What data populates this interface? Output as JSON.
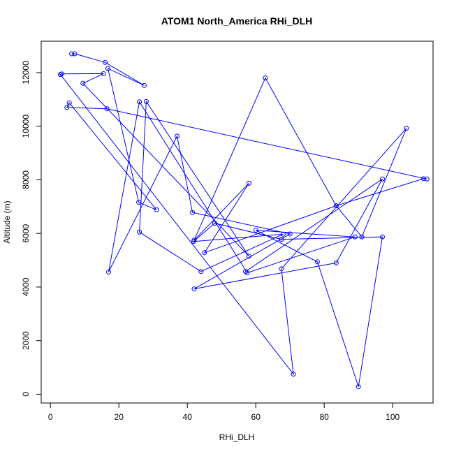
{
  "chart_data": {
    "type": "line",
    "title": "ATOM1 North_America RHi_DLH",
    "xlabel": "RHi_DLH",
    "ylabel": "Altitude (m)",
    "xlim": [
      0,
      110
    ],
    "ylim": [
      0,
      13000
    ],
    "xticks": [
      0,
      20,
      40,
      60,
      80,
      100
    ],
    "yticks": [
      0,
      2000,
      4000,
      6000,
      8000,
      10000,
      12000
    ],
    "grid": false,
    "legend": "none",
    "color": "#0000FF",
    "series": [
      {
        "x": [
          6.2,
          7.1,
          16.0,
          27.4,
          16.8,
          25.8,
          31.0,
          5.5,
          4.8,
          16.5,
          110.0,
          109.0,
          83.5,
          62.8,
          42.0,
          58.0,
          45.0,
          83.5,
          91.0,
          104.0,
          67.5,
          71.0,
          2.9,
          3.3,
          15.5,
          9.5,
          58.0,
          28.0,
          26.0,
          44.0,
          68.0,
          41.8,
          48.0,
          67.5,
          97.0,
          90.0,
          78.0,
          60.0,
          89.0,
          57.5,
          26.0,
          17.0,
          37.0,
          41.5,
          70.0,
          42.0,
          83.5,
          97.0,
          57.0
        ],
        "y": [
          12700,
          12700,
          12380,
          11520,
          12150,
          7160,
          6880,
          10870,
          10700,
          10650,
          8030,
          8040,
          7030,
          11800,
          5750,
          7870,
          5280,
          7030,
          5870,
          9920,
          4680,
          750,
          11930,
          11950,
          11960,
          11600,
          5150,
          10920,
          6050,
          4580,
          5970,
          5700,
          6380,
          5780,
          5870,
          280,
          4940,
          6120,
          5870,
          4530,
          10910,
          4560,
          9630,
          6780,
          5980,
          3930,
          4900,
          8030,
          4580
        ]
      }
    ]
  }
}
